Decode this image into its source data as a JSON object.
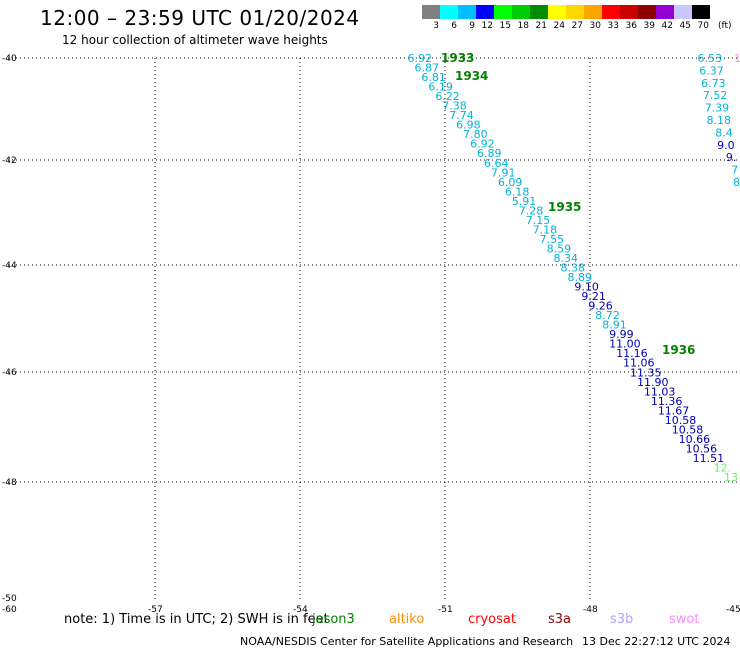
{
  "title": "12:00 – 23:59 UTC 01/20/2024",
  "subtitle": "12 hour collection of altimeter wave heights",
  "scale": {
    "unit": "(ft)",
    "labels": [
      "3",
      "6",
      "9",
      "12",
      "15",
      "18",
      "21",
      "24",
      "27",
      "30",
      "33",
      "36",
      "39",
      "42",
      "45",
      "70"
    ],
    "colors": [
      "#808080",
      "#00ffff",
      "#00bfff",
      "#0000ff",
      "#00ff00",
      "#00cd00",
      "#008b00",
      "#ffff00",
      "#ffd700",
      "#ffa500",
      "#ff0000",
      "#cd0000",
      "#8b0000",
      "#9400d3",
      "#da70d6",
      "#000000"
    ],
    "extra_swatch_color": "#c8c8ff"
  },
  "axes": {
    "lat_labels": [
      "-40",
      "-42",
      "-44",
      "-46",
      "-48",
      "-50"
    ],
    "lon_labels": [
      "-60",
      "-57",
      "-54",
      "-51",
      "-48",
      "-45"
    ],
    "corner_label": "-50"
  },
  "colors": {
    "teal": "#00b4d8",
    "navy": "#0000b4",
    "green": "#008000",
    "lightgreen": "#66ee66"
  },
  "pass_labels": [
    "1933",
    "1934",
    "1935",
    "1936"
  ],
  "track_a": [
    {
      "v": "6.92",
      "c": "teal"
    },
    {
      "v": "6.87",
      "c": "teal"
    },
    {
      "v": "6.81",
      "c": "teal"
    },
    {
      "v": "6.19",
      "c": "teal"
    },
    {
      "v": "6.22",
      "c": "teal"
    },
    {
      "v": "7.38",
      "c": "teal"
    },
    {
      "v": "7.74",
      "c": "teal"
    },
    {
      "v": "6.98",
      "c": "teal"
    },
    {
      "v": "7.80",
      "c": "teal"
    },
    {
      "v": "6.92",
      "c": "teal"
    },
    {
      "v": "6.89",
      "c": "teal"
    },
    {
      "v": "6.64",
      "c": "teal"
    },
    {
      "v": "7.91",
      "c": "teal"
    },
    {
      "v": "6.09",
      "c": "teal"
    },
    {
      "v": "6.18",
      "c": "teal"
    },
    {
      "v": "5.91",
      "c": "teal"
    },
    {
      "v": "7.28",
      "c": "teal"
    },
    {
      "v": "7.15",
      "c": "teal"
    },
    {
      "v": "7.18",
      "c": "teal"
    },
    {
      "v": "7.55",
      "c": "teal"
    },
    {
      "v": "8.59",
      "c": "teal"
    },
    {
      "v": "8.34",
      "c": "teal"
    },
    {
      "v": "8.38",
      "c": "teal"
    },
    {
      "v": "8.89",
      "c": "teal"
    },
    {
      "v": "9.10",
      "c": "navy"
    },
    {
      "v": "9.21",
      "c": "navy"
    },
    {
      "v": "9.26",
      "c": "navy"
    },
    {
      "v": "8.72",
      "c": "teal"
    },
    {
      "v": "8.91",
      "c": "teal"
    },
    {
      "v": "9.99",
      "c": "navy"
    },
    {
      "v": "11.00",
      "c": "navy"
    },
    {
      "v": "11.16",
      "c": "navy"
    },
    {
      "v": "11.06",
      "c": "navy"
    },
    {
      "v": "11.35",
      "c": "navy"
    },
    {
      "v": "11.90",
      "c": "navy"
    },
    {
      "v": "11.03",
      "c": "navy"
    },
    {
      "v": "11.36",
      "c": "navy"
    },
    {
      "v": "11.67",
      "c": "navy"
    },
    {
      "v": "10.58",
      "c": "navy"
    },
    {
      "v": "10.58",
      "c": "navy"
    },
    {
      "v": "10.66",
      "c": "navy"
    },
    {
      "v": "10.56",
      "c": "navy"
    },
    {
      "v": "11.51",
      "c": "navy"
    },
    {
      "v": "12.",
      "c": "lightgreen"
    },
    {
      "v": "13",
      "c": "lightgreen"
    }
  ],
  "track_b": [
    {
      "v": "6.53",
      "c": "teal"
    },
    {
      "v": "6.37",
      "c": "teal"
    },
    {
      "v": "6.73",
      "c": "teal"
    },
    {
      "v": "7.52",
      "c": "teal"
    },
    {
      "v": "7.39",
      "c": "teal"
    },
    {
      "v": "8.18",
      "c": "teal"
    },
    {
      "v": "8.4",
      "c": "teal"
    },
    {
      "v": "9.0",
      "c": "navy"
    },
    {
      "v": "9.",
      "c": "navy"
    },
    {
      "v": "7",
      "c": "teal"
    },
    {
      "v": "8",
      "c": "teal"
    }
  ],
  "track_b_extra": "1",
  "note": "note:  1) Time is in UTC; 2) SWH is in feet",
  "legend": [
    {
      "name": "jason3",
      "color": "#008000"
    },
    {
      "name": "altiko",
      "color": "#ff8c00"
    },
    {
      "name": "cryosat",
      "color": "#ff0000"
    },
    {
      "name": "s3a",
      "color": "#8b0000"
    },
    {
      "name": "s3b",
      "color": "#b0a0ff"
    },
    {
      "name": "swot",
      "color": "#ff8cff"
    }
  ],
  "footer_org": "NOAA/NESDIS Center for Satellite Applications and Research",
  "footer_date": "13 Dec 22:27:12 UTC 2024"
}
